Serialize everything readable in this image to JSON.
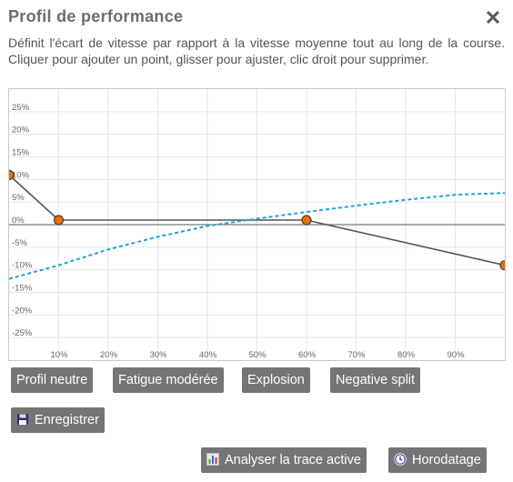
{
  "dialog": {
    "title": "Profil de performance",
    "description": "Définit l'écart de vitesse par rapport à la vitesse moyenne tout au long de la course. Cliquer pour ajouter un point, glisser pour ajuster, clic droit pour supprimer."
  },
  "chart_data": {
    "type": "line",
    "x_ticks": [
      "10%",
      "20%",
      "30%",
      "40%",
      "50%",
      "60%",
      "70%",
      "80%",
      "90%"
    ],
    "y_ticks": [
      "25%",
      "20%",
      "15%",
      "10%",
      "5%",
      "0%",
      "-5%",
      "-10%",
      "-15%",
      "-20%",
      "-25%"
    ],
    "xlim": [
      0,
      100
    ],
    "ylim": [
      -30,
      30
    ],
    "grid": true,
    "series": [
      {
        "type": "line",
        "color": "#555555",
        "points": [
          [
            0,
            11
          ],
          [
            10,
            1
          ],
          [
            60,
            1
          ],
          [
            100,
            -9
          ]
        ]
      },
      {
        "type": "dashed",
        "color": "#1aa3e0",
        "points": [
          [
            0,
            -12
          ],
          [
            10,
            -9
          ],
          [
            20,
            -5.5
          ],
          [
            30,
            -2.7
          ],
          [
            40,
            -0.3
          ],
          [
            50,
            1.3
          ],
          [
            60,
            2.8
          ],
          [
            70,
            4.2
          ],
          [
            80,
            5.5
          ],
          [
            90,
            6.6
          ],
          [
            100,
            7
          ]
        ]
      }
    ],
    "point_color": "#e8700f"
  },
  "presets": {
    "neutral": "Profil neutre",
    "fatigue": "Fatigue modérée",
    "explosion": "Explosion",
    "negative": "Negative split"
  },
  "actions": {
    "save": "Enregistrer",
    "analyze": "Analyser la trace active",
    "timestamp": "Horodatage"
  }
}
